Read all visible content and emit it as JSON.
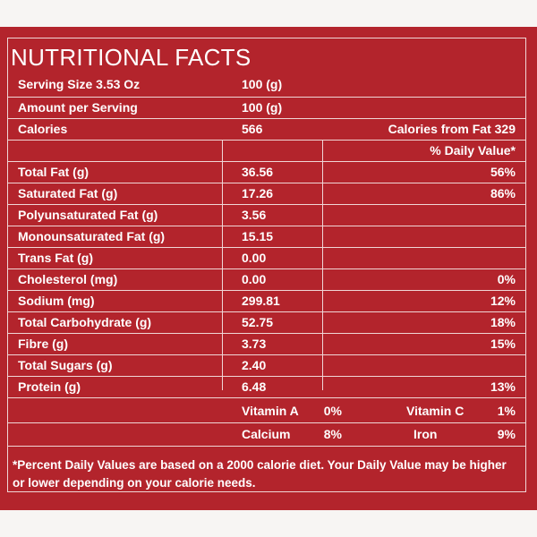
{
  "title": "NUTRITIONAL FACTS",
  "serving": {
    "label": "Serving Size 3.53 Oz",
    "value": "100 (g)"
  },
  "amount": {
    "label": "Amount per Serving",
    "value": "100 (g)"
  },
  "calories": {
    "label": "Calories",
    "value": "566",
    "from_fat": "Calories from Fat 329"
  },
  "dv_header": "% Daily Value*",
  "rows": [
    {
      "label": "Total Fat (g)",
      "value": "36.56",
      "dv": "56%"
    },
    {
      "label": "Saturated Fat (g)",
      "value": "17.26",
      "dv": "86%"
    },
    {
      "label": "Polyunsaturated Fat (g)",
      "value": "3.56",
      "dv": ""
    },
    {
      "label": "Monounsaturated Fat (g)",
      "value": "15.15",
      "dv": ""
    },
    {
      "label": "Trans Fat (g)",
      "value": "0.00",
      "dv": ""
    },
    {
      "label": "Cholesterol (mg)",
      "value": "0.00",
      "dv": "0%"
    },
    {
      "label": "Sodium (mg)",
      "value": "299.81",
      "dv": "12%"
    },
    {
      "label": "Total Carbohydrate (g)",
      "value": "52.75",
      "dv": "18%"
    },
    {
      "label": "Fibre (g)",
      "value": "3.73",
      "dv": "15%"
    },
    {
      "label": "Total Sugars (g)",
      "value": "2.40",
      "dv": ""
    },
    {
      "label": "Protein (g)",
      "value": "6.48",
      "dv": "13%"
    }
  ],
  "vitamins": {
    "vitamin_a": {
      "label": "Vitamin A",
      "value": "0%"
    },
    "vitamin_c": {
      "label": "Vitamin C",
      "value": "1%"
    },
    "calcium": {
      "label": "Calcium",
      "value": "8%"
    },
    "iron": {
      "label": "Iron",
      "value": "9%"
    }
  },
  "footnote": "*Percent Daily Values are based on a 2000 calorie diet. Your Daily Value may be higher or lower depending on your calorie needs.",
  "colors": {
    "background": "#b3242c",
    "text": "#ffffff",
    "rule": "#f0d6d6"
  }
}
